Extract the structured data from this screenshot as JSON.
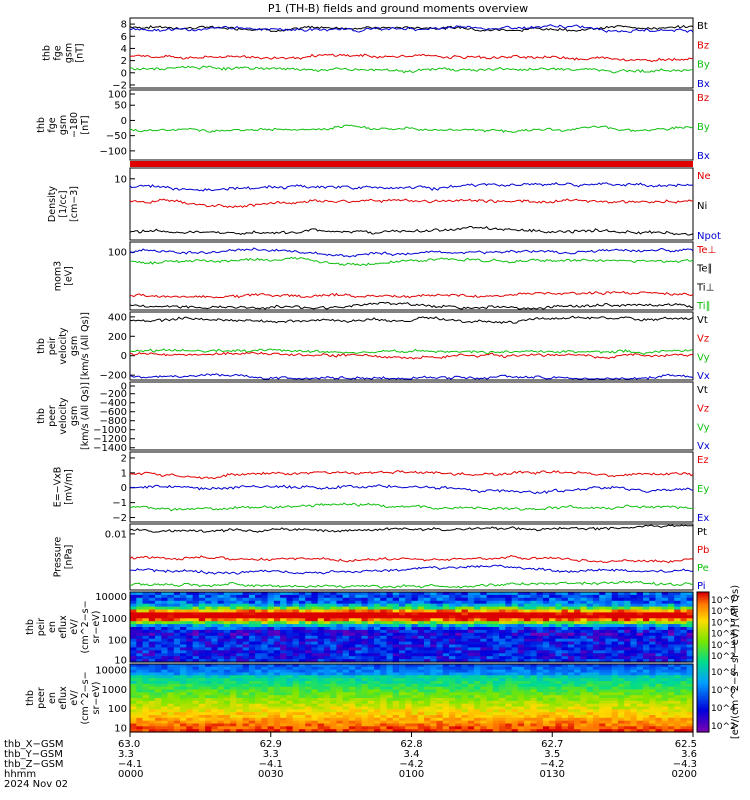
{
  "title": "P1 (TH-B) fields and ground moments overview",
  "colors": {
    "black": "#000000",
    "red": "#e00000",
    "green": "#10c010",
    "blue": "#0000d0"
  },
  "panels": [
    {
      "id": "fgm",
      "ylabel": [
        "thb",
        "fge",
        "gsm",
        "[nT]"
      ],
      "yticks": [
        "8",
        "6",
        "4",
        "2",
        "0",
        "−2"
      ],
      "yrange": [
        -2.5,
        9
      ],
      "legend": [
        {
          "text": "Bt",
          "color": "black"
        },
        {
          "text": "Bz",
          "color": "red"
        },
        {
          "text": "By",
          "color": "green"
        },
        {
          "text": "Bx",
          "color": "blue"
        }
      ],
      "series": [
        {
          "color": "black",
          "level": 7.6
        },
        {
          "color": "blue",
          "level": 7.2
        },
        {
          "color": "red",
          "level": 2.6
        },
        {
          "color": "green",
          "level": 0.6
        }
      ]
    },
    {
      "id": "fgm-dsl",
      "ylabel": [
        "thb",
        "fge",
        "gsm",
        "−180",
        "[nT]"
      ],
      "yticks": [
        "100",
        "50",
        "0",
        "−50",
        "−100"
      ],
      "yrange": [
        -130,
        100
      ],
      "legend": [
        {
          "text": "Bz",
          "color": "red"
        },
        {
          "text": "By",
          "color": "green"
        },
        {
          "text": "Bx",
          "color": "blue"
        }
      ],
      "series": [
        {
          "color": "green",
          "level": -28
        }
      ]
    },
    {
      "id": "density",
      "ylabel": [
        "Density",
        "[1/cc]",
        "[cm−3]"
      ],
      "yticks": [
        "10"
      ],
      "yrange": [
        0,
        1
      ],
      "legend": [
        {
          "text": "Ne",
          "color": "red"
        },
        {
          "text": "Ni",
          "color": "black"
        },
        {
          "text": "Npot",
          "color": "blue"
        }
      ],
      "series": [
        {
          "color": "blue",
          "level": 0.75
        },
        {
          "color": "red",
          "level": 0.55
        },
        {
          "color": "black",
          "level": 0.12
        }
      ]
    },
    {
      "id": "temp",
      "ylabel": [
        "mom3",
        "[eV]"
      ],
      "yticks": [
        "100"
      ],
      "yrange": [
        0,
        1
      ],
      "legend": [
        {
          "text": "Te⊥",
          "color": "red"
        },
        {
          "text": "Te∥",
          "color": "black"
        },
        {
          "text": "Ti⊥",
          "color": "black"
        },
        {
          "text": "Ti∥",
          "color": "green"
        }
      ],
      "series": [
        {
          "color": "blue",
          "level": 0.86
        },
        {
          "color": "green",
          "level": 0.72
        },
        {
          "color": "red",
          "level": 0.22
        },
        {
          "color": "black",
          "level": 0.06
        }
      ]
    },
    {
      "id": "vel-peir",
      "ylabel": [
        "thb",
        "peir",
        "velocity",
        "gsm",
        "[km/s (All Qs)]"
      ],
      "yticks": [
        "400",
        "200",
        "0",
        "−200"
      ],
      "yrange": [
        -250,
        450
      ],
      "legend": [
        {
          "text": "Vt",
          "color": "black"
        },
        {
          "text": "Vz",
          "color": "red"
        },
        {
          "text": "Vy",
          "color": "green"
        },
        {
          "text": "Vx",
          "color": "blue"
        }
      ],
      "series": [
        {
          "color": "black",
          "level": 370
        },
        {
          "color": "green",
          "level": 40
        },
        {
          "color": "red",
          "level": 20
        },
        {
          "color": "blue",
          "level": -215
        }
      ]
    },
    {
      "id": "vel-peer",
      "ylabel": [
        "thb",
        "peer",
        "velocity",
        "gsm",
        "[km/s (All Qs)]"
      ],
      "yticks": [
        "0",
        "−200",
        "−400",
        "−600",
        "−800",
        "−1000",
        "−1200",
        "−1400"
      ],
      "yrange": [
        -1450,
        60
      ],
      "legend": [
        {
          "text": "Vt",
          "color": "black"
        },
        {
          "text": "Vz",
          "color": "red"
        },
        {
          "text": "Vy",
          "color": "green"
        },
        {
          "text": "Vx",
          "color": "blue"
        }
      ],
      "series": []
    },
    {
      "id": "efield",
      "ylabel": [
        "E=−VxB",
        "[mV/m]"
      ],
      "yticks": [
        "2",
        "1",
        "0",
        "−1",
        "−2"
      ],
      "yrange": [
        -2.3,
        2.4
      ],
      "legend": [
        {
          "text": "Ez",
          "color": "red"
        },
        {
          "text": "Ey",
          "color": "green"
        },
        {
          "text": "Ex",
          "color": "blue"
        }
      ],
      "series": [
        {
          "color": "red",
          "level": 0.9
        },
        {
          "color": "blue",
          "level": 0.0
        },
        {
          "color": "green",
          "level": -1.3
        }
      ]
    },
    {
      "id": "pressure",
      "ylabel": [
        "Pressure",
        "[nPa]"
      ],
      "yticks": [
        "0.01"
      ],
      "yrange": [
        0,
        1
      ],
      "legend": [
        {
          "text": "Pt",
          "color": "black"
        },
        {
          "text": "Pb",
          "color": "red"
        },
        {
          "text": "Pe",
          "color": "green"
        },
        {
          "text": "Pi",
          "color": "blue"
        }
      ],
      "series": [
        {
          "color": "black",
          "level": 0.92
        },
        {
          "color": "red",
          "level": 0.48
        },
        {
          "color": "blue",
          "level": 0.3
        },
        {
          "color": "green",
          "level": 0.08
        }
      ]
    },
    {
      "id": "spec-peir",
      "ylabel": [
        "thb",
        "peir",
        "en",
        "eflux",
        "eV/",
        "(cm^2−s−",
        "sr−eV)"
      ],
      "yticks": [
        "10000",
        "1000",
        "100",
        "10"
      ],
      "yrange": [
        1,
        4.2
      ],
      "colorbar": {
        "label": "[eV/(cm^2−s−sr−eV)] (All Qs)",
        "ticks": [
          "10^7",
          "10^6",
          "10^5",
          "10^4",
          "10^3",
          "10^2"
        ]
      }
    },
    {
      "id": "spec-peer",
      "ylabel": [
        "thb",
        "peer",
        "en",
        "eflux",
        "eV/",
        "(cm^2−s−",
        "sr−eV)"
      ],
      "yticks": [
        "10000",
        "1000",
        "100",
        "10"
      ],
      "yrange": [
        0.8,
        4.3
      ],
      "colorbar": {
        "label": "[eV/(cm^2−s−sr−eV)] (All Qs)",
        "ticks": [
          "10^8",
          "10^6",
          "10^4",
          "10^2"
        ]
      }
    }
  ],
  "xaxis": {
    "row_labels": [
      "thb_X−GSM",
      "thb_Y−GSM",
      "thb_Z−GSM",
      "hhmm",
      "2024 Nov 02"
    ],
    "ticks": [
      {
        "pos": 0.0,
        "x": "63.0",
        "y": "3.3",
        "z": "−4.1",
        "hhmm": "0000"
      },
      {
        "pos": 0.25,
        "x": "62.9",
        "y": "3.3",
        "z": "−4.1",
        "hhmm": "0030"
      },
      {
        "pos": 0.5,
        "x": "62.8",
        "y": "3.4",
        "z": "−4.2",
        "hhmm": "0100"
      },
      {
        "pos": 0.75,
        "x": "62.7",
        "y": "3.5",
        "z": "−4.2",
        "hhmm": "0130"
      },
      {
        "pos": 1.0,
        "x": "62.5",
        "y": "3.6",
        "z": "−4.3",
        "hhmm": "0200"
      }
    ]
  }
}
